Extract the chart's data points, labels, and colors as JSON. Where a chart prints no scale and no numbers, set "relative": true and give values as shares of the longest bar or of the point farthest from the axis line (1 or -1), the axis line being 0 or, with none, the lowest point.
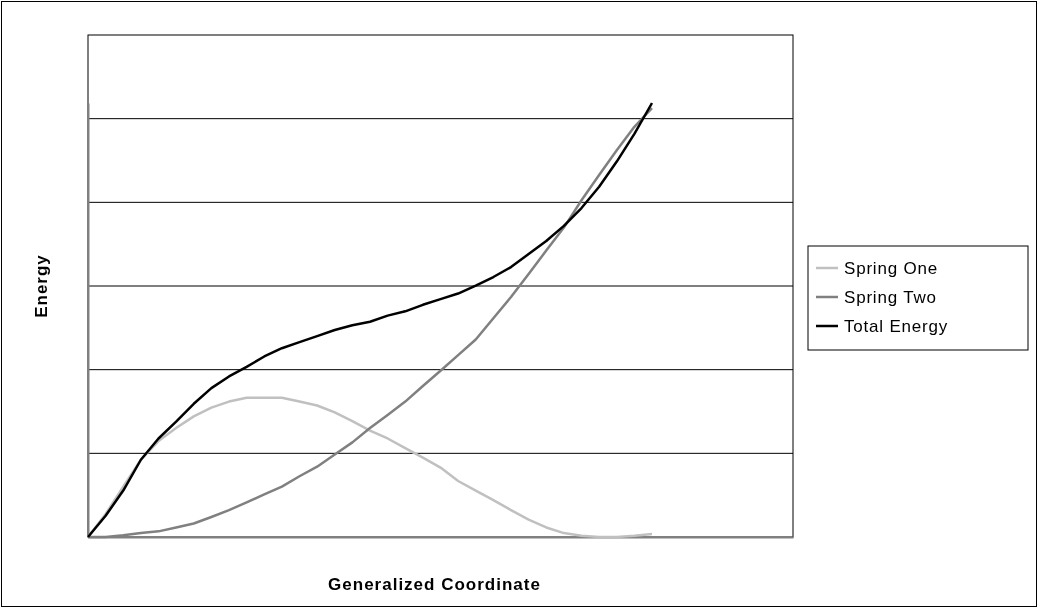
{
  "chart_data": {
    "type": "line",
    "relative": true,
    "xlabel": "Generalized Coordinate",
    "ylabel": "Energy",
    "grid": "y",
    "legend": "right",
    "marker": "none",
    "line_style": "solid",
    "categories": [
      null,
      null,
      null,
      null,
      null,
      null,
      null,
      null,
      null,
      null,
      null,
      null,
      null,
      null,
      null,
      null,
      null,
      null,
      null,
      null,
      null,
      null,
      null,
      null,
      null,
      null,
      null,
      null,
      null,
      null,
      null,
      null,
      null,
      null,
      null,
      null,
      null,
      null,
      null,
      null,
      null
    ],
    "series": [
      {
        "name": "Spring One",
        "color": "#c0c0c0",
        "values": [
          0,
          0.053,
          0.116,
          0.178,
          0.221,
          0.251,
          0.278,
          0.298,
          0.312,
          0.321,
          0.321,
          0.321,
          0.312,
          0.303,
          0.287,
          0.267,
          0.245,
          0.227,
          0.205,
          0.183,
          0.16,
          0.129,
          0.107,
          0.085,
          0.062,
          0.04,
          0.022,
          0.009,
          0.003,
          0,
          0,
          0.003,
          0.007,
          null,
          null,
          null,
          null,
          null,
          null,
          null,
          null
        ]
      },
      {
        "name": "Spring Two",
        "color": "#808080",
        "values": [
          0,
          0,
          0.004,
          0.009,
          0.013,
          0.022,
          0.031,
          0.046,
          0.062,
          0.08,
          0.098,
          0.116,
          0.14,
          0.162,
          0.19,
          0.218,
          0.251,
          0.281,
          0.312,
          0.348,
          0.383,
          0.419,
          0.455,
          0.504,
          0.553,
          0.606,
          0.66,
          0.713,
          0.776,
          0.834,
          0.891,
          0.945,
          0.988,
          null,
          null,
          null,
          null,
          null,
          null,
          null,
          null
        ]
      },
      {
        "name": "Total Energy",
        "color": "#000000",
        "values": [
          0,
          0.049,
          0.107,
          0.178,
          0.227,
          0.266,
          0.307,
          0.343,
          0.37,
          0.392,
          0.416,
          0.435,
          0.449,
          0.463,
          0.477,
          0.488,
          0.496,
          0.51,
          0.52,
          0.535,
          0.548,
          0.561,
          0.579,
          0.599,
          0.622,
          0.652,
          0.682,
          0.717,
          0.758,
          0.807,
          0.865,
          0.929,
          1,
          null,
          null,
          null,
          null,
          null,
          null,
          null,
          null
        ]
      }
    ]
  }
}
